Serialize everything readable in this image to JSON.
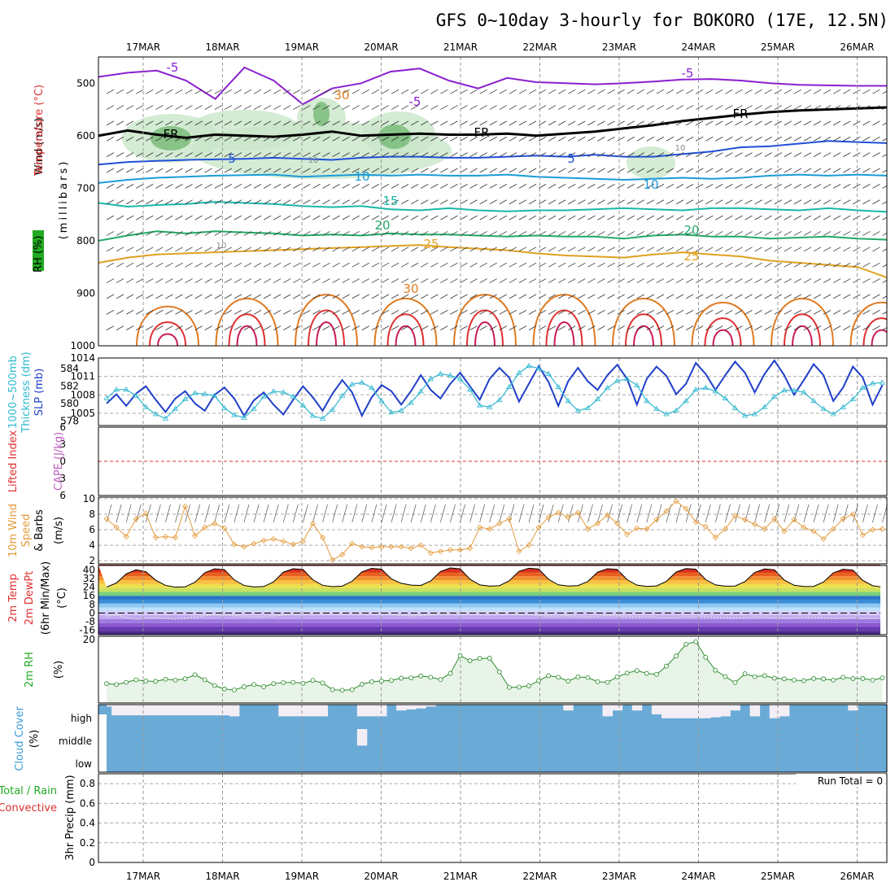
{
  "header": {
    "title": "GFS 0~10day 3-hourly for BOKORO (17E, 12.5N)"
  },
  "colors": {
    "temp_minus5": "#8a1fd0",
    "freezing": "#000000",
    "temp_5": "#1f4fd8",
    "temp_10": "#1a9bd8",
    "temp_15": "#18b8a8",
    "temp_20": "#22aa66",
    "temp_25": "#e0a020",
    "temp_30": "#e07a20",
    "temp_35": "#e03030",
    "rh_shade": "#c9e6c9",
    "slp": "#1f3fc8",
    "thickness": "#30b8d0",
    "wind10m": "#e39a3a",
    "rh2m": "#2a8a2a",
    "cloud": "#6aaad6",
    "lifted_index": "#e03030",
    "cape": "#c060c0"
  },
  "chart_data": [
    {
      "panel": "upper-air",
      "type": "contour",
      "ylabel": [
        "Wind (m/s)",
        "Temperature (°C)",
        "RH (%)",
        "(millibars)"
      ],
      "ylim": [
        1000,
        450
      ],
      "y_ticks": [
        500,
        600,
        700,
        800,
        900,
        1000
      ],
      "x_labels": [
        "17MAR",
        "18MAR",
        "19MAR",
        "20MAR",
        "21MAR",
        "22MAR",
        "23MAR",
        "24MAR",
        "25MAR",
        "26MAR"
      ],
      "contour_labels": [
        "-5",
        "-5",
        "-5",
        "FR",
        "FR",
        "FR",
        "5",
        "5",
        "10",
        "10",
        "15",
        "20",
        "20",
        "25",
        "25",
        "30",
        "30",
        "10",
        "10",
        "10"
      ],
      "isotherms": [
        {
          "name": "-5",
          "color": "#8a1fd0",
          "pressure": [
            488,
            480,
            476,
            495,
            530,
            470,
            495,
            540,
            510,
            500,
            478,
            472,
            495,
            510,
            490,
            498,
            500,
            502,
            500,
            497,
            493,
            492,
            495,
            500,
            503,
            504,
            505,
            505
          ]
        },
        {
          "name": "FR",
          "color": "#000000",
          "pressure": [
            600,
            590,
            598,
            604,
            598,
            600,
            602,
            598,
            592,
            600,
            598,
            596,
            598,
            598,
            596,
            600,
            596,
            592,
            586,
            580,
            572,
            566,
            560,
            555,
            552,
            550,
            548,
            546
          ]
        },
        {
          "name": "5",
          "color": "#1f4fd8",
          "pressure": [
            655,
            650,
            648,
            646,
            645,
            644,
            642,
            644,
            646,
            642,
            640,
            640,
            642,
            642,
            640,
            638,
            640,
            636,
            640,
            640,
            635,
            630,
            622,
            620,
            615,
            610,
            612,
            614
          ]
        },
        {
          "name": "10",
          "color": "#1a9bd8",
          "pressure": [
            690,
            684,
            680,
            678,
            676,
            675,
            674,
            678,
            676,
            674,
            676,
            674,
            676,
            676,
            674,
            678,
            680,
            682,
            684,
            682,
            680,
            682,
            680,
            676,
            674,
            676,
            674,
            676
          ]
        },
        {
          "name": "15",
          "color": "#18b8a8",
          "pressure": [
            728,
            735,
            732,
            730,
            726,
            728,
            730,
            734,
            736,
            734,
            740,
            742,
            738,
            742,
            744,
            742,
            742,
            740,
            738,
            740,
            742,
            738,
            738,
            740,
            742,
            738,
            742,
            745
          ]
        },
        {
          "name": "20",
          "color": "#22aa66",
          "pressure": [
            800,
            790,
            782,
            786,
            782,
            784,
            786,
            790,
            788,
            790,
            786,
            788,
            788,
            790,
            792,
            790,
            792,
            792,
            796,
            790,
            788,
            792,
            792,
            796,
            794,
            792,
            796,
            798
          ]
        },
        {
          "name": "25",
          "color": "#e0a020",
          "pressure": [
            842,
            832,
            826,
            824,
            822,
            820,
            818,
            816,
            814,
            812,
            810,
            808,
            812,
            815,
            818,
            824,
            828,
            830,
            832,
            826,
            822,
            826,
            830,
            838,
            842,
            846,
            850,
            870
          ]
        }
      ],
      "boundary_layer_maxima": [
        {
          "x": 0.3,
          "min_pressure": 900
        },
        {
          "x": 1.3,
          "min_pressure": 880
        },
        {
          "x": 2.3,
          "min_pressure": 870
        },
        {
          "x": 3.3,
          "min_pressure": 880
        },
        {
          "x": 4.3,
          "min_pressure": 870
        },
        {
          "x": 5.3,
          "min_pressure": 870
        },
        {
          "x": 6.3,
          "min_pressure": 880
        },
        {
          "x": 7.3,
          "min_pressure": 890
        },
        {
          "x": 8.3,
          "min_pressure": 880
        },
        {
          "x": 9.3,
          "min_pressure": 890
        }
      ]
    },
    {
      "panel": "slp-thickness",
      "type": "line",
      "ylabel": [
        "1000~500mb",
        "Thickness (dm)",
        "SLP (mb)"
      ],
      "y_ticks_left": [
        578,
        580,
        582,
        584
      ],
      "y_ticks_right": [
        1005,
        1008,
        1011,
        1014
      ],
      "ylim_left": [
        577.5,
        585.2
      ],
      "ylim_right": [
        1003,
        1014
      ],
      "series": [
        {
          "name": "SLP",
          "axis": "right",
          "color": "#1f3fc8",
          "values": [
            1006.6,
            1008.1,
            1006.2,
            1008.2,
            1009.4,
            1007.2,
            1005.2,
            1007.4,
            1008.6,
            1006.6,
            1005.4,
            1008.0,
            1009.2,
            1007.4,
            1004.6,
            1007.1,
            1008.4,
            1006.4,
            1004.8,
            1007.2,
            1009.4,
            1007.6,
            1005.4,
            1008.2,
            1010.4,
            1008.4,
            1004.6,
            1007.6,
            1009.6,
            1008.6,
            1006.4,
            1008.6,
            1011.2,
            1008.8,
            1007.4,
            1009.8,
            1011.6,
            1009.4,
            1007.2,
            1010.6,
            1012.4,
            1010.8,
            1006.9,
            1009.8,
            1012.7,
            1010.1,
            1006.2,
            1010.2,
            1012.4,
            1010.2,
            1008.8,
            1011.2,
            1012.9,
            1010.6,
            1006.4,
            1010.6,
            1012.6,
            1011.1,
            1008.1,
            1009.8,
            1013.2,
            1011.4,
            1008.8,
            1011.2,
            1013.4,
            1011.6,
            1008.4,
            1011.4,
            1013.6,
            1011.2,
            1008.0,
            1010.4,
            1013.0,
            1011.2,
            1007.0,
            1009.2,
            1012.6,
            1010.8,
            1006.4,
            1009.6
          ]
        },
        {
          "name": "Thickness",
          "axis": "left",
          "color": "#30b8d0",
          "values": [
            580.6,
            581.6,
            581.6,
            580.9,
            579.6,
            578.8,
            578.3,
            579.4,
            580.5,
            581.2,
            581.1,
            580.9,
            579.5,
            578.7,
            578.4,
            579.4,
            580.8,
            581.4,
            581.3,
            580.8,
            579.8,
            578.6,
            578.3,
            579.3,
            580.9,
            582.2,
            582.4,
            581.8,
            580.3,
            579.0,
            579.2,
            580.1,
            581.4,
            582.8,
            583.4,
            583.2,
            582.8,
            581.6,
            579.8,
            579.6,
            580.4,
            581.9,
            583.5,
            584.3,
            584.0,
            583.4,
            581.9,
            580.3,
            579.2,
            579.5,
            580.5,
            581.8,
            582.6,
            582.8,
            582.1,
            580.3,
            579.4,
            578.8,
            579.2,
            580.3,
            581.6,
            581.8,
            581.4,
            580.6,
            579.5,
            578.6,
            578.8,
            579.6,
            580.8,
            581.5,
            581.5,
            581.3,
            580.3,
            579.4,
            578.8,
            579.6,
            580.5,
            581.8,
            582.3,
            582.4
          ]
        }
      ]
    },
    {
      "panel": "lifted-index-cape",
      "type": "line",
      "ylabel": [
        "Lifted Index",
        "CAPE (J/kg)"
      ],
      "y_ticks": [
        6,
        3,
        0,
        -3,
        -6
      ],
      "ylim": [
        -6,
        6
      ],
      "values": []
    },
    {
      "panel": "wind-10m",
      "type": "line",
      "ylabel": [
        "10m Wind",
        "Speed",
        "(m/s)",
        "& Barbs"
      ],
      "y_ticks": [
        2,
        4,
        6,
        8,
        10
      ],
      "ylim": [
        1.6,
        10.2
      ],
      "series": [
        {
          "name": "speed",
          "color": "#e39a3a",
          "values": [
            7.4,
            6.3,
            5.1,
            7.4,
            8.1,
            5.0,
            5.1,
            5.0,
            9.0,
            5.2,
            6.3,
            6.8,
            6.2,
            4.1,
            3.8,
            4.2,
            4.6,
            4.8,
            4.5,
            4.1,
            4.5,
            6.8,
            5.0,
            2.1,
            2.8,
            4.2,
            3.8,
            3.7,
            3.8,
            3.8,
            3.8,
            3.6,
            4.0,
            3.0,
            3.2,
            3.4,
            3.4,
            3.6,
            6.3,
            6.1,
            6.8,
            7.4,
            3.2,
            4.0,
            6.3,
            7.6,
            8.2,
            7.6,
            8.2,
            6.1,
            6.8,
            7.9,
            6.8,
            5.4,
            6.2,
            6.1,
            7.3,
            8.4,
            9.7,
            8.7,
            7.0,
            6.4,
            5.0,
            6.1,
            7.8,
            7.3,
            6.7,
            6.1,
            7.4,
            5.8,
            7.3,
            6.3,
            5.8,
            4.8,
            6.1,
            7.4,
            8.0,
            5.3,
            6.0,
            6.1
          ]
        }
      ]
    },
    {
      "panel": "temp-2m",
      "type": "area",
      "ylabel": [
        "2m Temp",
        "2m DewPt",
        "(6hr Min/Max)",
        "(°C)"
      ],
      "y_ticks": [
        40,
        32,
        24,
        16,
        8,
        0,
        -8,
        -16
      ],
      "ylim": [
        -20,
        44
      ],
      "series": [
        {
          "name": "temperature",
          "values": [
            24.0,
            27.8,
            36.2,
            40.0,
            38.3,
            30.4,
            25.6,
            24.0,
            24.2,
            28.5,
            37.3,
            40.9,
            40.2,
            30.7,
            25.5,
            24.1,
            24.5,
            28.8,
            37.8,
            41.0,
            40.3,
            30.8,
            25.6,
            24.4,
            24.9,
            29.4,
            38.1,
            41.4,
            40.5,
            31.6,
            27.5,
            25.8,
            25.6,
            29.6,
            38.4,
            41.7,
            40.9,
            31.3,
            26.0,
            24.9,
            25.3,
            29.8,
            38.6,
            41.5,
            40.7,
            31.2,
            26.1,
            25.0,
            25.4,
            29.2,
            37.8,
            41.0,
            40.3,
            30.9,
            25.8,
            24.6,
            25.1,
            29.3,
            38.0,
            41.2,
            40.5,
            31.0,
            26.0,
            24.9,
            25.0,
            29.1,
            37.6,
            40.8,
            40.1,
            30.6,
            25.7,
            24.5,
            24.6,
            28.7,
            37.2,
            40.5,
            39.7,
            30.2,
            25.3,
            24.0
          ]
        },
        {
          "name": "dewpoint",
          "values": [
            -3.0,
            -1.8,
            -4.0,
            -5.8,
            -4.8,
            -4.2,
            -5.0,
            -5.6,
            -4.9,
            -3.8,
            -2.4,
            -1.6,
            -1.8,
            -2.4,
            -3.0,
            -3.4,
            -3.2,
            -2.8,
            -1.8,
            -1.0,
            -0.4,
            0.2,
            0.5,
            0.2,
            0.3,
            -0.2,
            -0.6,
            -0.4,
            -0.8,
            -1.4,
            -2.0,
            -2.4,
            -2.2,
            -1.6,
            -1.0,
            -0.4,
            0.4,
            1.0,
            1.2,
            0.8,
            0.6,
            -0.4,
            -1.2,
            -1.4,
            -2.2,
            -2.8,
            -3.0,
            -2.6,
            -3.2,
            -3.6,
            -3.0,
            -2.4,
            -2.6,
            -3.0,
            -3.4,
            -3.2,
            -3.8,
            -4.2,
            -4.0,
            -3.4,
            -3.2,
            -3.4,
            -3.8,
            -4.2,
            -4.6,
            -4.2,
            -3.6,
            -3.8,
            -4.2,
            -4.6,
            -4.4,
            -3.8,
            -4.0,
            -4.4,
            -4.8,
            -4.6,
            -4.2,
            -4.8,
            -5.0,
            -4.8
          ]
        }
      ]
    },
    {
      "panel": "rh-2m",
      "type": "area",
      "ylabel": [
        "2m RH",
        "(%)"
      ],
      "y_ticks": [
        20
      ],
      "ylim": [
        0,
        21
      ],
      "series": [
        {
          "name": "rh",
          "color": "#2a8a2a",
          "values": [
            6.1,
            5.8,
            6.5,
            7.3,
            6.9,
            6.8,
            7.5,
            7.2,
            7.6,
            8.9,
            7.3,
            5.5,
            4.4,
            4.1,
            5.1,
            5.8,
            5.1,
            6.1,
            6.4,
            6.5,
            6.2,
            7.1,
            6.3,
            4.2,
            4.0,
            4.2,
            5.9,
            6.7,
            6.9,
            7.1,
            7.8,
            7.9,
            8.5,
            8.1,
            7.4,
            9.3,
            14.9,
            13.3,
            14.0,
            14.1,
            9.8,
            4.9,
            5.0,
            5.4,
            7.0,
            8.6,
            8.1,
            6.9,
            8.2,
            8.0,
            6.7,
            6.5,
            8.2,
            9.4,
            10.2,
            9.3,
            9.0,
            11.6,
            14.8,
            18.5,
            19.3,
            14.4,
            10.3,
            8.3,
            6.4,
            9.2,
            8.3,
            8.6,
            7.8,
            7.6,
            7.2,
            7.0,
            7.7,
            7.6,
            7.2,
            8.1,
            7.7,
            7.7,
            7.2,
            7.9
          ]
        }
      ]
    },
    {
      "panel": "cloud-cover",
      "type": "heatmap",
      "ylabel": [
        "Cloud Cover",
        "(%)"
      ],
      "y_ticks": [
        "high",
        "middle",
        "low"
      ],
      "high_cloud_fraction": [
        0.1,
        0.55,
        0.55,
        0.55,
        0.55,
        0.55,
        0.55,
        0.55,
        0.55,
        0.55,
        0.55,
        0.55,
        0.55,
        0.6,
        0.0,
        0.0,
        0.0,
        0.0,
        0.6,
        0.6,
        0.6,
        0.6,
        0.6,
        0.0,
        0.0,
        0.0,
        0.6,
        0.6,
        0.6,
        0.0,
        0.3,
        0.25,
        0.2,
        0.1,
        0.0,
        0.0,
        0.0,
        0.0,
        0.0,
        0.0,
        0.0,
        0.0,
        0.0,
        0.0,
        0.0,
        0.0,
        0.0,
        0.3,
        0.0,
        0.0,
        0.0,
        0.6,
        0.3,
        0.0,
        0.3,
        0.0,
        0.5,
        0.7,
        0.7,
        0.7,
        0.7,
        0.7,
        0.65,
        0.6,
        0.3,
        0.0,
        0.6,
        0.0,
        0.7,
        0.6,
        0.0,
        0.0,
        0.0,
        0.0,
        0.0,
        0.0,
        0.3,
        0.0,
        0.0,
        0.0
      ],
      "middle_cloud_fraction": [
        0,
        0,
        0,
        0,
        0,
        0,
        0,
        0,
        0,
        0,
        0,
        0,
        0,
        0,
        0,
        0,
        0,
        0,
        0,
        0,
        0,
        0,
        0,
        0,
        0,
        0,
        0.85,
        0,
        0,
        0,
        0,
        0,
        0,
        0,
        0,
        0,
        0,
        0,
        0,
        0,
        0,
        0,
        0,
        0,
        0,
        0,
        0,
        0,
        0,
        0,
        0,
        0,
        0,
        0,
        0,
        0,
        0,
        0,
        0,
        0,
        0,
        0,
        0,
        0,
        0,
        0,
        0,
        0,
        0,
        0,
        0,
        0,
        0,
        0,
        0,
        0,
        0,
        0,
        0,
        0
      ]
    },
    {
      "panel": "precipitation",
      "type": "bar",
      "ylabel": [
        "Total / Rain",
        "Convective",
        "3hr Precip (mm)"
      ],
      "y_ticks": [
        0,
        0.2,
        0.4,
        0.6,
        0.8
      ],
      "ylim": [
        0,
        0.9
      ],
      "annotation": "Run Total = 0",
      "values": []
    }
  ]
}
